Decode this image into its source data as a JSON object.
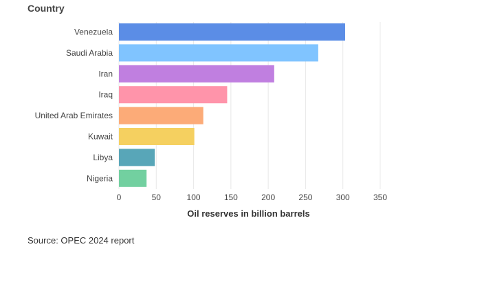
{
  "chart_data": {
    "type": "bar",
    "orientation": "horizontal",
    "ylabel": "Country",
    "xlabel": "Oil reserves in billion barrels",
    "categories": [
      "Venezuela",
      "Saudi Arabia",
      "Iran",
      "Iraq",
      "United Arab Emirates",
      "Kuwait",
      "Libya",
      "Nigeria"
    ],
    "values": [
      303,
      267,
      208,
      145,
      113,
      101,
      48,
      37
    ],
    "colors": [
      "#5b8de6",
      "#80c4ff",
      "#c07fe0",
      "#ff94aa",
      "#fcab78",
      "#f5d060",
      "#58a6b8",
      "#72d0a0"
    ],
    "xlim": [
      0,
      350
    ],
    "xticks": [
      0,
      50,
      100,
      150,
      200,
      250,
      300,
      350
    ],
    "grid": true,
    "source": "Source: OPEC 2024 report"
  }
}
